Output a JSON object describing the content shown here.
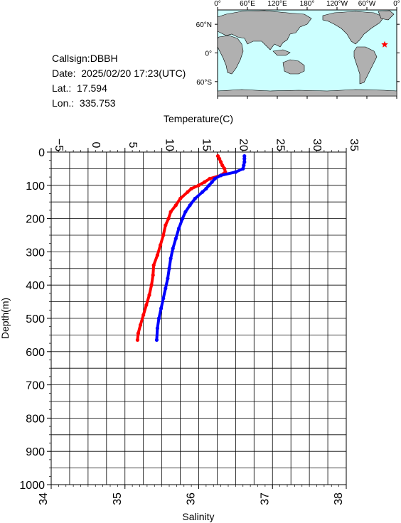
{
  "station": {
    "callsign_label": "Callsign:",
    "callsign": "DBBH",
    "date_label": "Date:",
    "date": "2025/02/20 17:23(UTC)",
    "lat_label": "Lat.:",
    "lat": "17.594",
    "lon_label": "Lon.:",
    "lon": "335.753"
  },
  "map": {
    "lon_ticks": [
      "0°",
      "60°E",
      "120°E",
      "180°",
      "120°W",
      "60°W",
      "0°"
    ],
    "lat_ticks": [
      "60°N",
      "0°",
      "60°S"
    ],
    "ocean_color": "#ccffff",
    "land_color": "#b0b0b0",
    "marker": {
      "lat": 17.594,
      "lon": 335.753,
      "color": "#ff0000",
      "symbol": "star"
    }
  },
  "chart_data": {
    "type": "line",
    "top_axis": {
      "label": "Temperature(C)",
      "range": [
        -5,
        35
      ],
      "ticks": [
        "−5",
        "0",
        "5",
        "10",
        "15",
        "20",
        "25",
        "30",
        "35"
      ]
    },
    "bottom_axis": {
      "label": "Salinity",
      "range": [
        34,
        38
      ],
      "ticks": [
        "34",
        "35",
        "36",
        "37",
        "38"
      ]
    },
    "y_axis": {
      "label": "Depth(m)",
      "range": [
        0,
        1000
      ],
      "inverted": true,
      "ticks": [
        "0",
        "100",
        "200",
        "300",
        "400",
        "500",
        "600",
        "700",
        "800",
        "900",
        "1000"
      ]
    },
    "grid": true,
    "series": [
      {
        "color": "#ff0000",
        "axis": "top",
        "x_units": "°C",
        "depth": [
          12,
          20,
          30,
          40,
          50,
          60,
          70,
          80,
          90,
          100,
          110,
          120,
          140,
          160,
          180,
          200,
          220,
          250,
          280,
          310,
          340,
          370,
          400,
          430,
          460,
          490,
          520,
          545,
          565
        ],
        "values": [
          17.6,
          17.8,
          18.0,
          18.2,
          18.5,
          18.6,
          18.0,
          16.5,
          15.8,
          15.0,
          14.0,
          13.5,
          12.5,
          11.9,
          11.2,
          10.9,
          10.5,
          10.2,
          9.8,
          9.4,
          8.9,
          8.8,
          8.6,
          8.3,
          7.9,
          7.5,
          7.1,
          6.8,
          6.7
        ]
      },
      {
        "color": "#0000ff",
        "axis": "bottom",
        "x_units": "PSU",
        "depth": [
          12,
          20,
          30,
          40,
          50,
          60,
          70,
          80,
          90,
          100,
          110,
          120,
          140,
          160,
          180,
          200,
          230,
          260,
          290,
          320,
          350,
          380,
          410,
          440,
          470,
          500,
          530,
          565
        ],
        "values": [
          36.62,
          36.62,
          36.62,
          36.61,
          36.6,
          36.5,
          36.3,
          36.22,
          36.18,
          36.14,
          36.1,
          36.05,
          35.95,
          35.88,
          35.82,
          35.78,
          35.73,
          35.69,
          35.65,
          35.62,
          35.6,
          35.58,
          35.55,
          35.52,
          35.49,
          35.46,
          35.44,
          35.43
        ]
      }
    ]
  }
}
